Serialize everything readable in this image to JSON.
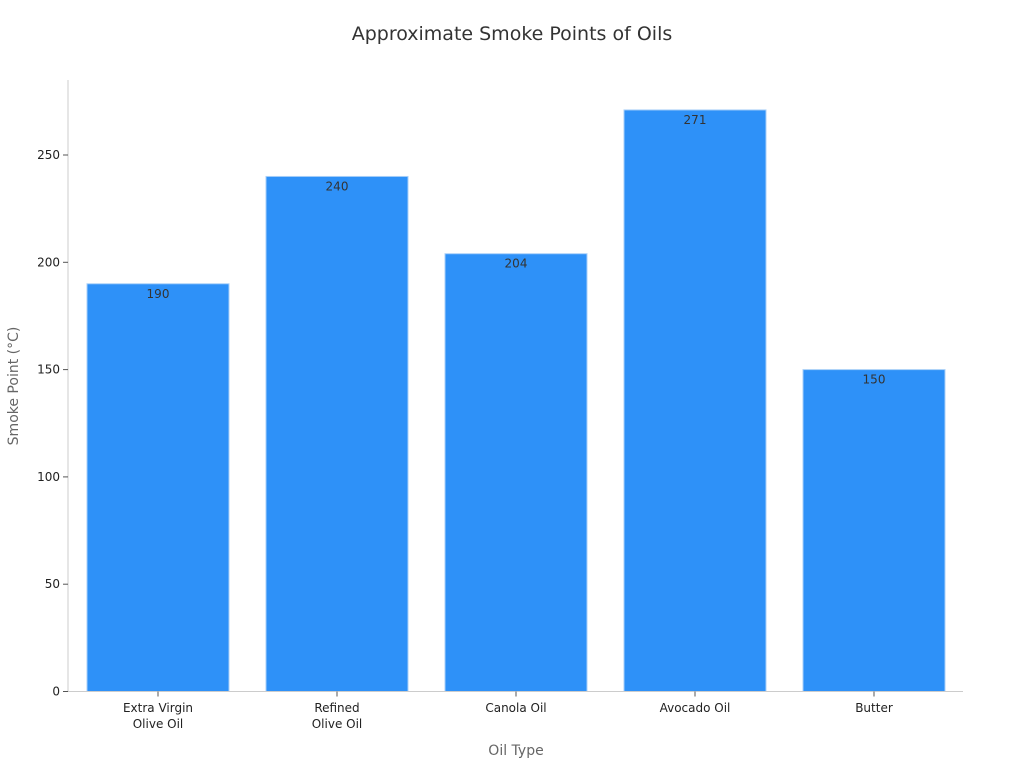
{
  "chart_data": {
    "type": "bar",
    "title": "Approximate Smoke Points of Oils",
    "xlabel": "Oil Type",
    "ylabel": "Smoke Point (°C)",
    "categories": [
      [
        "Extra Virgin",
        "Olive Oil"
      ],
      [
        "Refined",
        "Olive Oil"
      ],
      [
        "Canola Oil"
      ],
      [
        "Avocado Oil"
      ],
      [
        "Butter"
      ]
    ],
    "values": [
      190,
      240,
      204,
      271,
      150
    ],
    "data_labels": [
      "190",
      "240",
      "204",
      "271",
      "150"
    ],
    "yticks": [
      0,
      50,
      100,
      150,
      200,
      250
    ],
    "ylim": [
      0,
      285
    ],
    "grid": false,
    "bar_color": "#2e91f8"
  }
}
